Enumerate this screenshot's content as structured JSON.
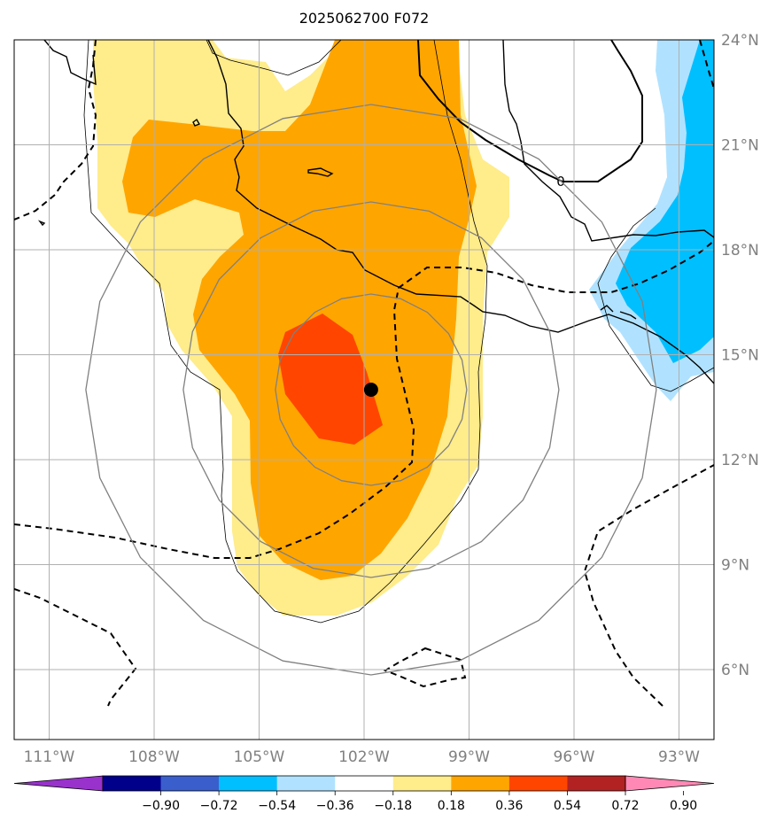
{
  "title": "2025062700 F072",
  "map": {
    "lon_range": [
      -112,
      -92
    ],
    "lat_range": [
      4,
      24
    ],
    "lat_ticks": [
      {
        "value": 24,
        "label": "24°N"
      },
      {
        "value": 21,
        "label": "21°N"
      },
      {
        "value": 18,
        "label": "18°N"
      },
      {
        "value": 15,
        "label": "15°N"
      },
      {
        "value": 12,
        "label": "12°N"
      },
      {
        "value": 9,
        "label": "9°N"
      },
      {
        "value": 6,
        "label": "6°N"
      }
    ],
    "lon_ticks": [
      {
        "value": -111,
        "label": "111°W"
      },
      {
        "value": -108,
        "label": "108°W"
      },
      {
        "value": -105,
        "label": "105°W"
      },
      {
        "value": -102,
        "label": "102°W"
      },
      {
        "value": -99,
        "label": "99°W"
      },
      {
        "value": -96,
        "label": "96°W"
      },
      {
        "value": -93,
        "label": "93°W"
      }
    ],
    "grid": true,
    "storm_center": {
      "lon": -101.8,
      "lat": 14.0
    },
    "contour_label": "0",
    "range_rings": "concentric circles around storm center"
  },
  "colorbar": {
    "colors": [
      "#9932cc",
      "#00008b",
      "#3a5fcd",
      "#00bfff",
      "#b0e2ff",
      "#ffffff",
      "#ffec8b",
      "#ffa500",
      "#ff4500",
      "#b22222",
      "#ff89b4"
    ],
    "tick_labels": [
      "−0.90",
      "−0.72",
      "−0.54",
      "−0.36",
      "−0.18",
      "0.18",
      "0.36",
      "0.54",
      "0.72",
      "0.90"
    ]
  }
}
